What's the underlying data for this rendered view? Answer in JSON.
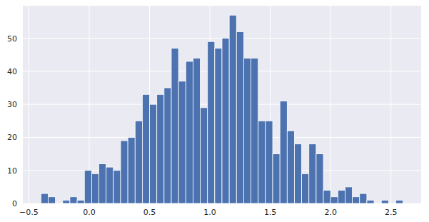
{
  "chart_data": {
    "type": "histogram",
    "color": "#4c72b0",
    "grid": true,
    "bins": [
      -0.4,
      -0.34,
      -0.28,
      -0.22,
      -0.16,
      -0.1,
      -0.04,
      0.02,
      0.08,
      0.14,
      0.2,
      0.26,
      0.32,
      0.38,
      0.44,
      0.5,
      0.56,
      0.62,
      0.68,
      0.74,
      0.8,
      0.86,
      0.92,
      0.98,
      1.04,
      1.1,
      1.16,
      1.22,
      1.28,
      1.34,
      1.4,
      1.46,
      1.52,
      1.58,
      1.64,
      1.7,
      1.76,
      1.82,
      1.88,
      1.94,
      2.0,
      2.06,
      2.12,
      2.18,
      2.24,
      2.3,
      2.36,
      2.42,
      2.48,
      2.54,
      2.6
    ],
    "values": [
      3,
      2,
      0,
      1,
      2,
      1,
      10,
      9,
      12,
      11,
      10,
      19,
      20,
      25,
      33,
      30,
      33,
      35,
      47,
      37,
      43,
      44,
      29,
      49,
      47,
      50,
      57,
      52,
      44,
      44,
      25,
      25,
      15,
      31,
      22,
      18,
      9,
      18,
      15,
      4,
      2,
      4,
      5,
      2,
      3,
      1,
      0,
      1,
      0,
      1
    ],
    "xlim": [
      -0.55,
      2.75
    ],
    "xticks": [
      {
        "value": -0.5,
        "label": "−0.5"
      },
      {
        "value": 0,
        "label": "0.0"
      },
      {
        "value": 0.5,
        "label": "0.5"
      },
      {
        "value": 1,
        "label": "1.0"
      },
      {
        "value": 1.5,
        "label": "1.5"
      },
      {
        "value": 2,
        "label": "2.0"
      },
      {
        "value": 2.5,
        "label": "2.5"
      }
    ],
    "ylim": [
      0,
      59.85
    ],
    "yticks": [
      0,
      10,
      20,
      30,
      40,
      50
    ]
  }
}
